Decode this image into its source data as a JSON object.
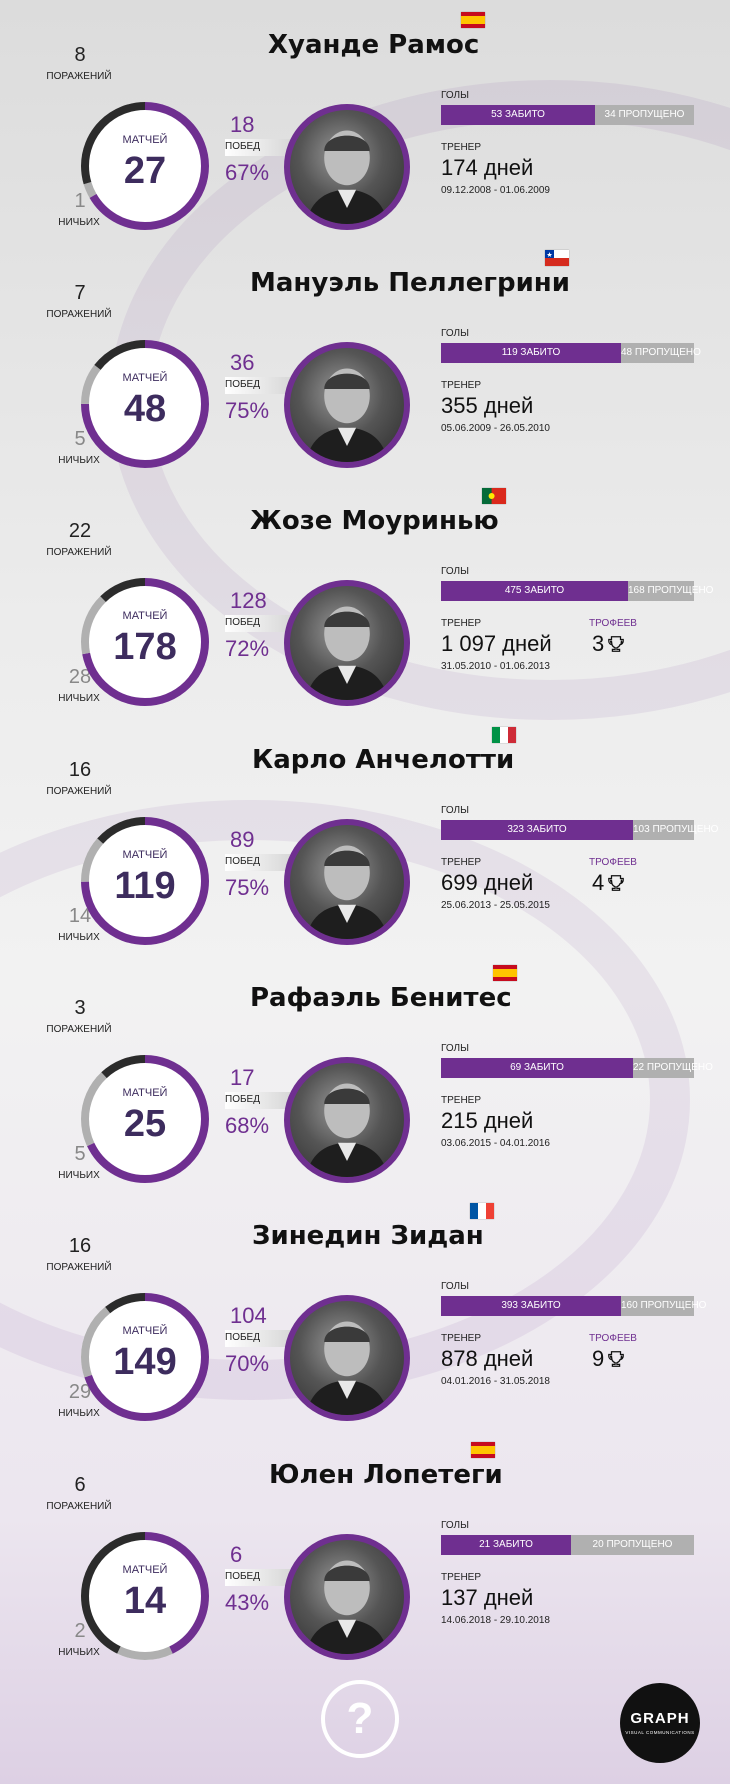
{
  "labels": {
    "matches": "матчей",
    "wins": "побед",
    "losses": "поражений",
    "draws": "ничьих",
    "goals": "голы",
    "coach": "тренер",
    "trophies": "трофеев"
  },
  "footer": {
    "question": "?",
    "logo_main": "GRAPH",
    "logo_sub": "VISUAL COMMUNICATIONS"
  },
  "colors": {
    "accent": "#6f2f90",
    "dark": "#2b2b2b",
    "grey": "#b0b0b0"
  },
  "chart_data": {
    "type": "donut",
    "coaches": [
      {
        "name": "Хуанде Рамос",
        "flag": "spain",
        "losses": 8,
        "draws": 1,
        "matches": 27,
        "wins": 18,
        "win_pct": "67%",
        "scored_label": "53 забито",
        "conceded_label": "34 пропущено",
        "scored": 53,
        "conceded": 34,
        "days_label": "174 дней",
        "dates": "09.12.2008 - 01.06.2009",
        "trophies": null
      },
      {
        "name": "Мануэль Пеллегрини",
        "flag": "chile",
        "losses": 7,
        "draws": 5,
        "matches": 48,
        "wins": 36,
        "win_pct": "75%",
        "scored_label": "119 забито",
        "conceded_label": "48 пропущено",
        "scored": 119,
        "conceded": 48,
        "days_label": "355 дней",
        "dates": "05.06.2009 - 26.05.2010",
        "trophies": null
      },
      {
        "name": "Жозе Моуринью",
        "flag": "portugal",
        "losses": 22,
        "draws": 28,
        "matches": 178,
        "wins": 128,
        "win_pct": "72%",
        "scored_label": "475 забито",
        "conceded_label": "168 пропущено",
        "scored": 475,
        "conceded": 168,
        "days_label": "1 097 дней",
        "dates": "31.05.2010 - 01.06.2013",
        "trophies": 3
      },
      {
        "name": "Карло Анчелотти",
        "flag": "italy",
        "losses": 16,
        "draws": 14,
        "matches": 119,
        "wins": 89,
        "win_pct": "75%",
        "scored_label": "323 забито",
        "conceded_label": "103 пропущено",
        "scored": 323,
        "conceded": 103,
        "days_label": "699 дней",
        "dates": "25.06.2013 - 25.05.2015",
        "trophies": 4
      },
      {
        "name": "Рафаэль Бенитес",
        "flag": "spain",
        "losses": 3,
        "draws": 5,
        "matches": 25,
        "wins": 17,
        "win_pct": "68%",
        "scored_label": "69 забито",
        "conceded_label": "22 пропущено",
        "scored": 69,
        "conceded": 22,
        "days_label": "215 дней",
        "dates": "03.06.2015 - 04.01.2016",
        "trophies": null
      },
      {
        "name": "Зинедин Зидан",
        "flag": "france",
        "losses": 16,
        "draws": 29,
        "matches": 149,
        "wins": 104,
        "win_pct": "70%",
        "scored_label": "393 забито",
        "conceded_label": "160 пропущено",
        "scored": 393,
        "conceded": 160,
        "days_label": "878 дней",
        "dates": "04.01.2016 - 31.05.2018",
        "trophies": 9
      },
      {
        "name": "Юлен Лопетеги",
        "flag": "spain",
        "losses": 6,
        "draws": 2,
        "matches": 14,
        "wins": 6,
        "win_pct": "43%",
        "scored_label": "21 забито",
        "conceded_label": "20 пропущено",
        "scored": 21,
        "conceded": 20,
        "days_label": "137 дней",
        "dates": "14.06.2018 - 29.10.2018",
        "trophies": null
      }
    ]
  }
}
